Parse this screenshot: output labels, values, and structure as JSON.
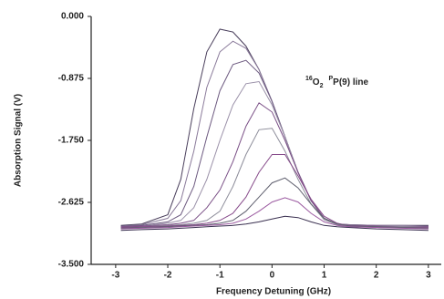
{
  "chart_data": {
    "type": "line",
    "xlabel": "Frequency Detuning  (GHz)",
    "ylabel": "Absorption Signal  (V)",
    "annotation": {
      "isotope": "16",
      "molecule": "O",
      "subscript": "2",
      "branch": "P",
      "line": "P(9) line"
    },
    "xlim": [
      -3.47,
      3.3
    ],
    "ylim": [
      -3.5,
      0
    ],
    "xticks": [
      -3,
      -2,
      -1,
      0,
      1,
      2,
      3
    ],
    "yticks": [
      {
        "value": 0,
        "label": "0.000"
      },
      {
        "value": -0.875,
        "label": "-0.875"
      },
      {
        "value": -1.75,
        "label": "-1.750"
      },
      {
        "value": -2.625,
        "label": "-2.625"
      },
      {
        "value": -3.5,
        "label": "-3.500"
      }
    ],
    "x": [
      -2.9,
      -2.5,
      -2,
      -1.75,
      -1.5,
      -1.25,
      -1,
      -0.75,
      -0.5,
      -0.25,
      0,
      0.25,
      0.5,
      0.75,
      1,
      1.25,
      1.5,
      2,
      2.5,
      3
    ],
    "series": [
      {
        "color": "#4a3f5c",
        "values": [
          -2.95,
          -2.93,
          -2.8,
          -2.3,
          -1.3,
          -0.5,
          -0.18,
          -0.22,
          -0.42,
          -0.75,
          -1.2,
          -1.7,
          -2.2,
          -2.6,
          -2.85,
          -2.93,
          -2.94,
          -2.95,
          -2.95,
          -2.95
        ]
      },
      {
        "color": "#8a7a9a",
        "values": [
          -2.96,
          -2.94,
          -2.85,
          -2.6,
          -1.9,
          -1.0,
          -0.5,
          -0.35,
          -0.45,
          -0.75,
          -1.2,
          -1.7,
          -2.2,
          -2.6,
          -2.85,
          -2.93,
          -2.94,
          -2.95,
          -2.95,
          -2.96
        ]
      },
      {
        "color": "#6d5a80",
        "values": [
          -2.96,
          -2.95,
          -2.9,
          -2.8,
          -2.4,
          -1.7,
          -1.05,
          -0.68,
          -0.62,
          -0.8,
          -1.2,
          -1.7,
          -2.2,
          -2.6,
          -2.85,
          -2.93,
          -2.95,
          -2.96,
          -2.96,
          -2.96
        ]
      },
      {
        "color": "#9a90a8",
        "values": [
          -2.97,
          -2.96,
          -2.92,
          -2.88,
          -2.7,
          -2.3,
          -1.75,
          -1.25,
          -0.95,
          -0.92,
          -1.25,
          -1.7,
          -2.2,
          -2.6,
          -2.85,
          -2.93,
          -2.95,
          -2.96,
          -2.96,
          -2.97
        ]
      },
      {
        "color": "#7a4f86",
        "values": [
          -2.97,
          -2.96,
          -2.94,
          -2.92,
          -2.88,
          -2.7,
          -2.45,
          -2.05,
          -1.55,
          -1.22,
          -1.35,
          -1.75,
          -2.2,
          -2.6,
          -2.85,
          -2.94,
          -2.95,
          -2.96,
          -2.97,
          -2.97
        ]
      },
      {
        "color": "#8d8d9a",
        "values": [
          -2.98,
          -2.97,
          -2.95,
          -2.94,
          -2.92,
          -2.88,
          -2.75,
          -2.4,
          -1.95,
          -1.6,
          -1.58,
          -1.9,
          -2.3,
          -2.65,
          -2.87,
          -2.94,
          -2.96,
          -2.97,
          -2.97,
          -2.98
        ]
      },
      {
        "color": "#864a8a",
        "values": [
          -2.98,
          -2.97,
          -2.96,
          -2.95,
          -2.94,
          -2.92,
          -2.88,
          -2.78,
          -2.55,
          -2.2,
          -1.95,
          -1.95,
          -2.25,
          -2.58,
          -2.82,
          -2.92,
          -2.96,
          -2.97,
          -2.98,
          -2.98
        ]
      },
      {
        "color": "#5f5f6e",
        "values": [
          -2.99,
          -2.98,
          -2.97,
          -2.96,
          -2.95,
          -2.94,
          -2.92,
          -2.88,
          -2.75,
          -2.55,
          -2.35,
          -2.28,
          -2.42,
          -2.65,
          -2.85,
          -2.93,
          -2.96,
          -2.97,
          -2.98,
          -2.99
        ]
      },
      {
        "color": "#9b5aa0",
        "values": [
          -3.0,
          -2.99,
          -2.98,
          -2.97,
          -2.96,
          -2.95,
          -2.94,
          -2.92,
          -2.86,
          -2.75,
          -2.62,
          -2.56,
          -2.62,
          -2.78,
          -2.9,
          -2.95,
          -2.97,
          -2.98,
          -2.99,
          -3.0
        ]
      },
      {
        "color": "#3a3050",
        "values": [
          -3.02,
          -3.01,
          -3.0,
          -2.99,
          -2.98,
          -2.97,
          -2.96,
          -2.95,
          -2.93,
          -2.9,
          -2.86,
          -2.82,
          -2.84,
          -2.9,
          -2.95,
          -2.97,
          -2.98,
          -3.0,
          -3.01,
          -3.02
        ]
      }
    ]
  }
}
